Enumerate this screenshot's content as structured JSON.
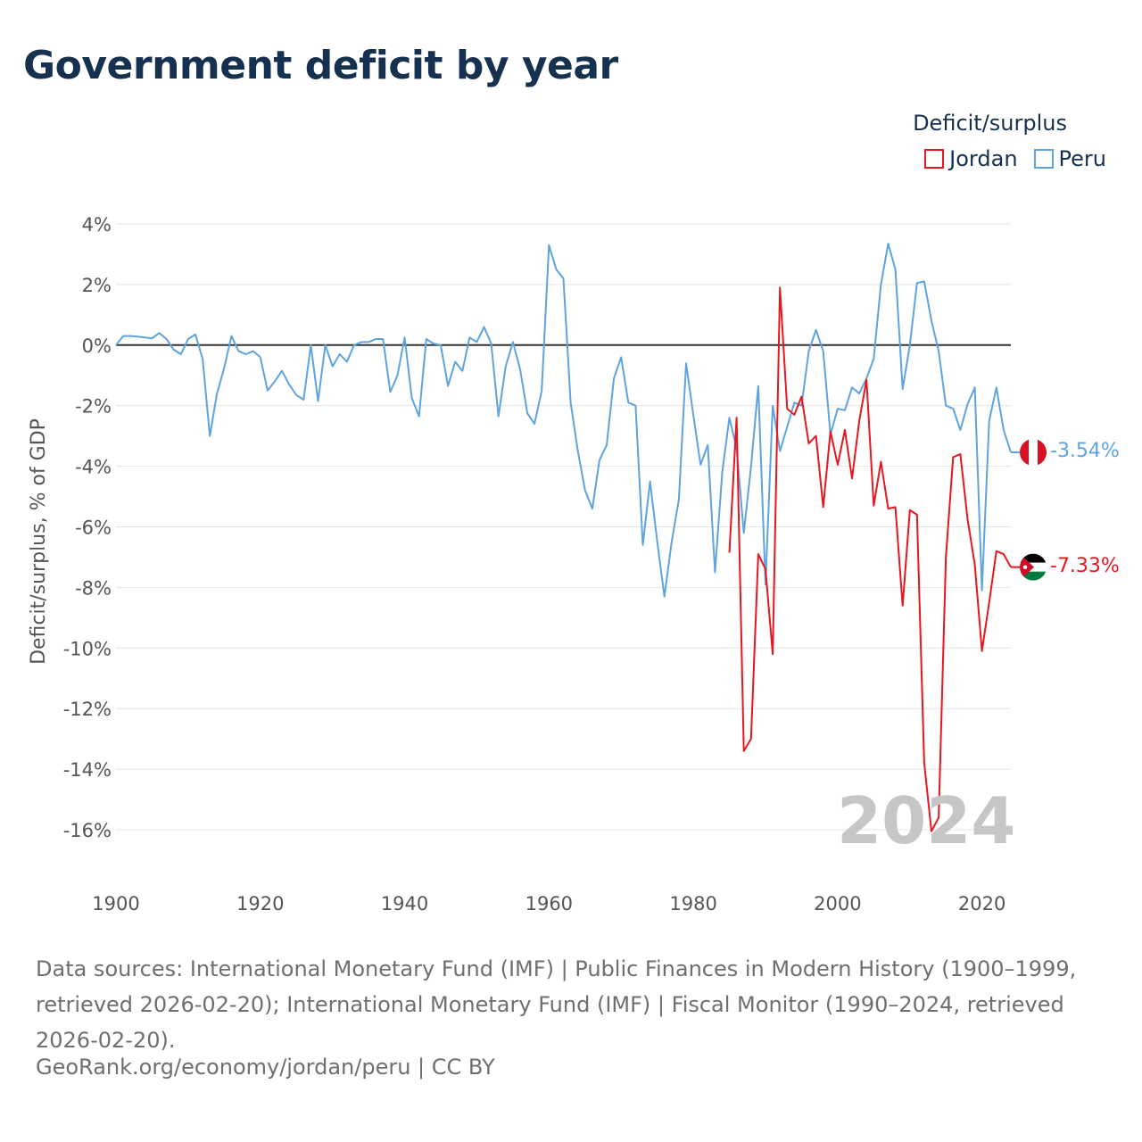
{
  "title": "Government deficit by year",
  "legend": {
    "title": "Deficit/surplus",
    "items": [
      {
        "label": "Jordan",
        "color": "#e8161e"
      },
      {
        "label": "Peru",
        "color": "#5da4e0"
      }
    ]
  },
  "watermark_year": "2024",
  "source_text": "Data sources: International Monetary Fund (IMF) | Public Finances in Modern History (1900–1999, retrieved 2026-02-20); International Monetary Fund (IMF) | Fiscal Monitor (1990–2024, retrieved 2026-02-20).",
  "credit_text": "GeoRank.org/economy/jordan/peru | CC BY",
  "end_labels": {
    "peru": "-3.54%",
    "jordan": "-7.33%"
  },
  "chart_data": {
    "type": "line",
    "title": "Government deficit by year",
    "xlabel": "",
    "ylabel": "Deficit/surplus, % of GDP",
    "xlim": [
      1900,
      2024
    ],
    "ylim": [
      -17.5,
      4.5
    ],
    "x_ticks": [
      1900,
      1920,
      1940,
      1960,
      1980,
      2000,
      2020
    ],
    "x_tick_labels": [
      "1900",
      "1920",
      "1940",
      "1960",
      "1980",
      "2000",
      "2020"
    ],
    "y_ticks": [
      4,
      2,
      0,
      -2,
      -4,
      -6,
      -8,
      -10,
      -12,
      -14,
      -16
    ],
    "y_tick_labels": [
      "4%",
      "2%",
      "0%",
      "-2%",
      "-4%",
      "-6%",
      "-8%",
      "-10%",
      "-12%",
      "-14%",
      "-16%"
    ],
    "series": [
      {
        "name": "Peru",
        "color": "#5da4e0",
        "x": [
          1900,
          1901,
          1902,
          1903,
          1904,
          1905,
          1906,
          1907,
          1908,
          1909,
          1910,
          1911,
          1912,
          1913,
          1914,
          1915,
          1916,
          1917,
          1918,
          1919,
          1920,
          1921,
          1922,
          1923,
          1924,
          1925,
          1926,
          1927,
          1928,
          1929,
          1930,
          1931,
          1932,
          1933,
          1934,
          1935,
          1936,
          1937,
          1938,
          1939,
          1940,
          1941,
          1942,
          1943,
          1944,
          1945,
          1946,
          1947,
          1948,
          1949,
          1950,
          1951,
          1952,
          1953,
          1954,
          1955,
          1956,
          1957,
          1958,
          1959,
          1960,
          1961,
          1962,
          1963,
          1964,
          1965,
          1966,
          1967,
          1968,
          1969,
          1970,
          1971,
          1972,
          1973,
          1974,
          1975,
          1976,
          1977,
          1978,
          1979,
          1980,
          1981,
          1982,
          1983,
          1984,
          1985,
          1986,
          1987,
          1988,
          1989,
          1990,
          1991,
          1992,
          1993,
          1994,
          1995,
          1996,
          1997,
          1998,
          1999,
          2000,
          2001,
          2002,
          2003,
          2004,
          2005,
          2006,
          2007,
          2008,
          2009,
          2010,
          2011,
          2012,
          2013,
          2014,
          2015,
          2016,
          2017,
          2018,
          2019,
          2020,
          2021,
          2022,
          2023,
          2024
        ],
        "values": [
          0.0,
          0.3,
          0.3,
          0.28,
          0.25,
          0.22,
          0.4,
          0.2,
          -0.15,
          -0.3,
          0.2,
          0.35,
          -0.45,
          -3.0,
          -1.6,
          -0.75,
          0.3,
          -0.2,
          -0.3,
          -0.2,
          -0.4,
          -1.5,
          -1.2,
          -0.85,
          -1.3,
          -1.65,
          -1.8,
          0.0,
          -1.85,
          0.0,
          -0.7,
          -0.3,
          -0.55,
          0.0,
          0.1,
          0.1,
          0.2,
          0.2,
          -1.55,
          -1.0,
          0.25,
          -1.75,
          -2.35,
          0.2,
          0.05,
          0.0,
          -1.35,
          -0.55,
          -0.85,
          0.25,
          0.1,
          0.6,
          0.05,
          -2.35,
          -0.7,
          0.1,
          -0.8,
          -2.25,
          -2.6,
          -1.5,
          3.3,
          2.5,
          2.2,
          -1.9,
          -3.5,
          -4.8,
          -5.4,
          -3.8,
          -3.3,
          -1.1,
          -0.4,
          -1.9,
          -2.0,
          -6.6,
          -4.5,
          -6.5,
          -8.3,
          -6.5,
          -5.1,
          -0.6,
          -2.3,
          -3.95,
          -3.3,
          -7.5,
          -4.2,
          -2.4,
          -3.4,
          -6.2,
          -4.0,
          -1.35,
          -7.9,
          -2.0,
          -3.5,
          -2.7,
          -1.9,
          -2.0,
          -0.2,
          0.5,
          -0.2,
          -2.95,
          -2.1,
          -2.15,
          -1.4,
          -1.6,
          -1.1,
          -0.45,
          2.0,
          3.35,
          2.5,
          -1.45,
          0.0,
          2.05,
          2.1,
          0.8,
          -0.2,
          -2.0,
          -2.1,
          -2.8,
          -1.95,
          -1.4,
          -8.1,
          -2.5,
          -1.4,
          -2.8,
          -3.54
        ]
      },
      {
        "name": "Jordan",
        "color": "#e8161e",
        "x": [
          1985,
          1986,
          1987,
          1988,
          1989,
          1990,
          1991,
          1992,
          1993,
          1994,
          1995,
          1996,
          1997,
          1998,
          1999,
          2000,
          2001,
          2002,
          2003,
          2004,
          2005,
          2006,
          2007,
          2008,
          2009,
          2010,
          2011,
          2012,
          2013,
          2014,
          2015,
          2016,
          2017,
          2018,
          2019,
          2020,
          2021,
          2022,
          2023,
          2024
        ],
        "values": [
          -6.85,
          -2.4,
          -13.4,
          -13.0,
          -6.9,
          -7.4,
          -10.2,
          1.9,
          -2.1,
          -2.3,
          -1.7,
          -3.25,
          -3.0,
          -5.35,
          -2.85,
          -3.95,
          -2.8,
          -4.4,
          -2.5,
          -1.15,
          -5.3,
          -3.85,
          -5.4,
          -5.35,
          -8.6,
          -5.45,
          -5.6,
          -13.8,
          -16.05,
          -15.6,
          -7.0,
          -3.7,
          -3.6,
          -5.75,
          -7.25,
          -10.1,
          -8.5,
          -6.8,
          -6.9,
          -7.33
        ]
      }
    ]
  }
}
